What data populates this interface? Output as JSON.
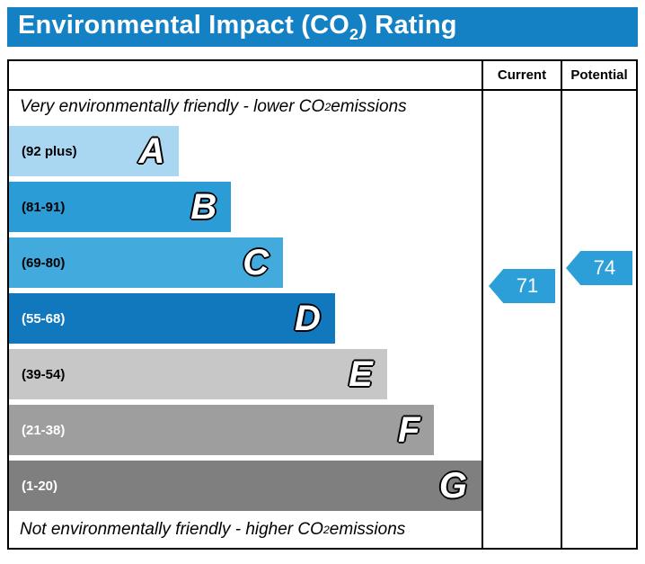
{
  "title": {
    "prefix": "Environmental Impact (CO",
    "sub": "2",
    "suffix": ") Rating"
  },
  "columns": {
    "current": "Current",
    "potential": "Potential"
  },
  "notes": {
    "top": {
      "prefix": "Very environmentally friendly - lower CO",
      "sub": "2",
      "suffix": " emissions"
    },
    "bottom": {
      "prefix": "Not environmentally friendly - higher CO",
      "sub": "2",
      "suffix": " emissions"
    }
  },
  "bands": [
    {
      "letter": "A",
      "range": "(92 plus)",
      "color": "#a9d7f1",
      "text_color": "#000000",
      "width_pct": 36
    },
    {
      "letter": "B",
      "range": "(81-91)",
      "color": "#2b9cd6",
      "text_color": "#000000",
      "width_pct": 47
    },
    {
      "letter": "C",
      "range": "(69-80)",
      "color": "#42aadd",
      "text_color": "#000000",
      "width_pct": 58
    },
    {
      "letter": "D",
      "range": "(55-68)",
      "color": "#1278bd",
      "text_color": "#ffffff",
      "width_pct": 69
    },
    {
      "letter": "E",
      "range": "(39-54)",
      "color": "#c7c7c7",
      "text_color": "#000000",
      "width_pct": 80
    },
    {
      "letter": "F",
      "range": "(21-38)",
      "color": "#9e9e9e",
      "text_color": "#ffffff",
      "width_pct": 90
    },
    {
      "letter": "G",
      "range": "(1-20)",
      "color": "#7f7f7f",
      "text_color": "#ffffff",
      "width_pct": 100
    }
  ],
  "current": {
    "value": "71"
  },
  "potential": {
    "value": "74"
  },
  "colors": {
    "header_bg": "#1581c5",
    "arrow": "#2d9fd8"
  },
  "chart_data": {
    "type": "bar",
    "title": "Environmental Impact (CO2) Rating",
    "categories": [
      "A (92 plus)",
      "B (81-91)",
      "C (69-80)",
      "D (55-68)",
      "E (39-54)",
      "F (21-38)",
      "G (1-20)"
    ],
    "values": [
      36,
      47,
      58,
      69,
      80,
      90,
      100
    ],
    "markers": {
      "current": 71,
      "potential": 74
    },
    "top_label": "Very environmentally friendly - lower CO2 emissions",
    "bottom_label": "Not environmentally friendly - higher CO2 emissions",
    "legend_position": "right-columns"
  }
}
